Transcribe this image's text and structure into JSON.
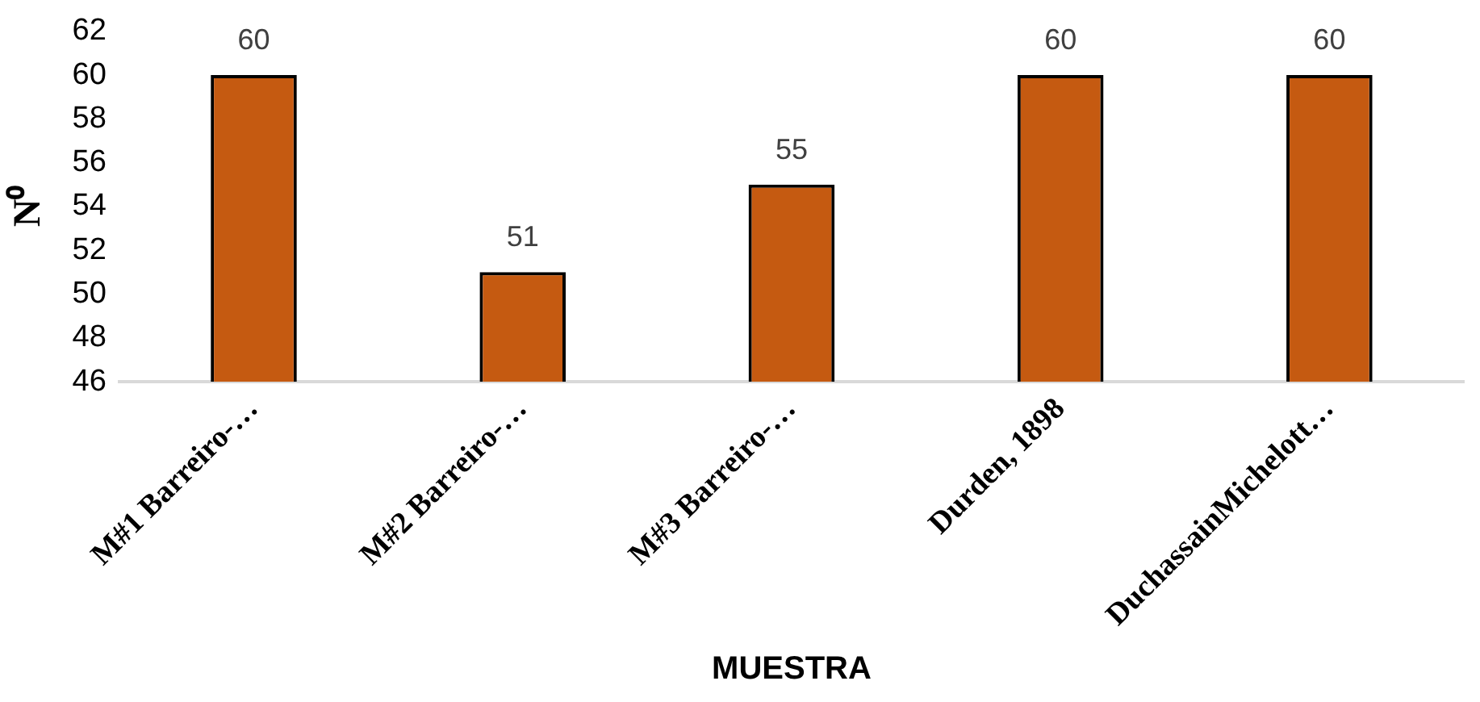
{
  "chart_data": {
    "type": "bar",
    "xlabel": "MUESTRA",
    "ylabel": "N⁰",
    "categories": [
      "M#1 Barreiro-…",
      "M#2 Barreiro-…",
      "M#3 Barreiro-…",
      "Durden, 1898",
      "DuchassainMichelott…"
    ],
    "values": [
      60,
      51,
      55,
      60,
      60
    ],
    "color": "#c55a11",
    "ylim": [
      46,
      62
    ],
    "yticks": [
      46,
      48,
      50,
      52,
      54,
      56,
      58,
      60,
      62
    ],
    "grid": false,
    "legend": false,
    "data_labels": true
  }
}
